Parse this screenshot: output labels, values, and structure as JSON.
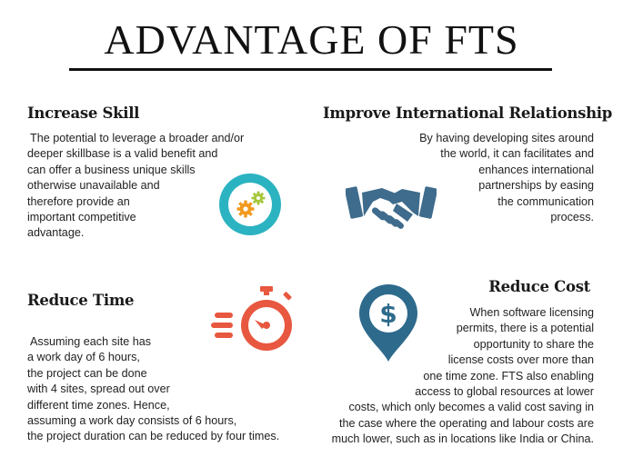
{
  "title": "ADVANTAGE OF FTS",
  "sections": {
    "increase_skill": {
      "heading": "Increase Skill",
      "lines": [
        "The potential to leverage a broader and/or",
        "deeper skillbase is a valid benefit and",
        "can offer a business unique skills",
        "otherwise unavailable and",
        "therefore provide an",
        "important competitive",
        "advantage."
      ],
      "icon": "gears-icon"
    },
    "improve_relationship": {
      "heading": "Improve International Relationship",
      "lines": [
        "By having developing sites around",
        "the world,  it can facilitates and",
        "enhances international",
        "partnerships by easing",
        "the communication",
        "process."
      ],
      "icon": "handshake-icon"
    },
    "reduce_time": {
      "heading": "Reduce Time",
      "lines": [
        "Assuming each site has",
        "a work day of 6 hours,",
        "the project can be done",
        "with 4 sites, spread out over",
        "different time zones. Hence,",
        "assuming a work day consists of 6 hours,",
        "the project duration can be reduced by four times."
      ],
      "icon": "stopwatch-icon"
    },
    "reduce_cost": {
      "heading": "Reduce Cost",
      "lines": [
        "When software licensing",
        "permits, there is a potential",
        "opportunity to  share the",
        "license costs over more than",
        "one time zone. FTS also enabling",
        "access to global resources at lower",
        "costs, which only becomes a valid cost saving in",
        "the case where the operating and labour costs are",
        "much lower, such as in locations like India or China."
      ],
      "icon": "dollar-pin-icon",
      "icon_glyph": "$"
    }
  },
  "colors": {
    "teal": "#2cb3c1",
    "slate_blue": "#3f6c8c",
    "orange_red": "#e8573f",
    "gear_orange": "#f29a1f",
    "gear_green": "#a6c63a"
  }
}
